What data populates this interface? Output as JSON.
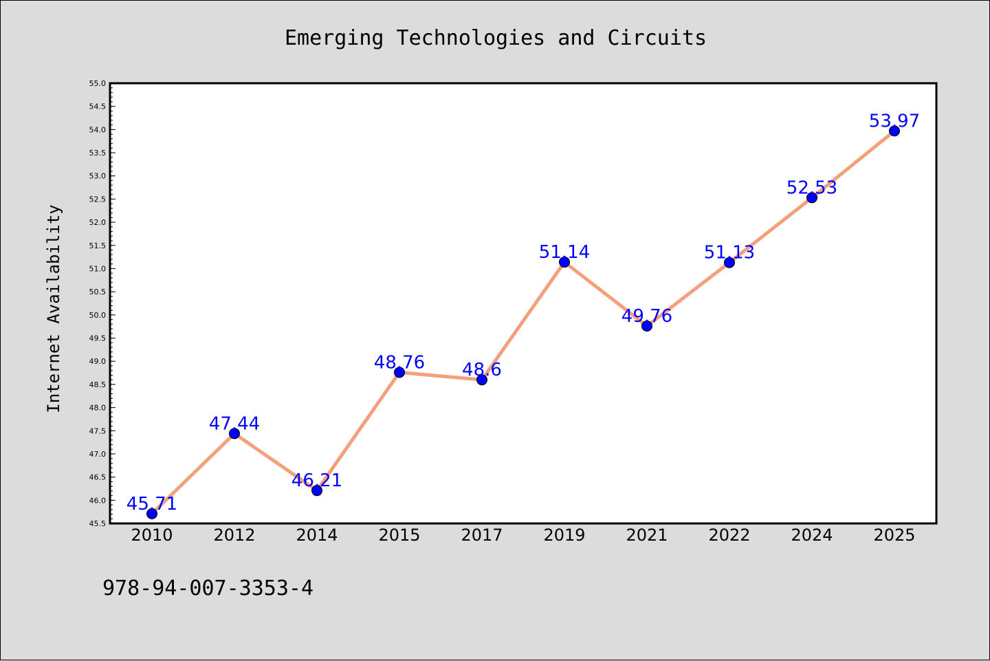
{
  "chart_data": {
    "type": "line",
    "title": "Emerging Technologies and Circuits",
    "xlabel": "",
    "ylabel": "Internet Availability",
    "categories": [
      "2010",
      "2012",
      "2014",
      "2015",
      "2017",
      "2019",
      "2021",
      "2022",
      "2024",
      "2025"
    ],
    "series": [
      {
        "values": [
          45.71,
          47.44,
          46.21,
          48.76,
          48.6,
          51.14,
          49.76,
          51.13,
          52.53,
          53.97
        ],
        "labels": [
          "45.71",
          "47.44",
          "46.21",
          "48.76",
          "48.6",
          "51.14",
          "49.76",
          "51.13",
          "52.53",
          "53.97"
        ]
      }
    ],
    "ylim": [
      45.5,
      55.0
    ],
    "yticks": [
      "45.5",
      "46.0",
      "46.5",
      "47.0",
      "47.5",
      "48.0",
      "48.5",
      "49.0",
      "49.5",
      "50.0",
      "50.5",
      "51.0",
      "51.5",
      "52.0",
      "52.5",
      "53.0",
      "53.5",
      "54.0",
      "54.5",
      "55.0"
    ],
    "grid": false,
    "line_color": "#f4a07c",
    "marker_color": "#0000ff",
    "label_color": "#0000ff",
    "background_color": "#dcdcdc",
    "plot_background_color": "#ffffff"
  },
  "footer": {
    "isbn": "978-94-007-3353-4"
  }
}
